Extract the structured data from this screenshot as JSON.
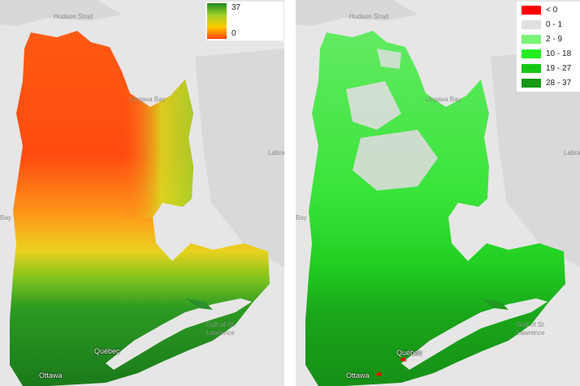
{
  "left_map": {
    "labels": {
      "hudson_strait": "Hudson Strait",
      "ungava_bay": "Ungava Bay",
      "labrador": "Labra",
      "bay": "Bay",
      "gulf_line1": "Gulf of St.",
      "gulf_line2": "Lawrence",
      "quebec": "Québec",
      "ottawa": "Ottawa"
    },
    "legend": {
      "max": "37",
      "min": "0",
      "colors": [
        "#1e8a1e",
        "#9fd12a",
        "#ffcc00",
        "#ff4000"
      ]
    }
  },
  "right_map": {
    "labels": {
      "hudson_strait": "Hudson Strait",
      "ungava_bay": "Ungava Bay",
      "labrador": "Labra",
      "bay": "Bay",
      "gulf_line1": "Gulf of St.",
      "gulf_line2": "Lawrence",
      "quebec": "Québec",
      "ottawa": "Ottawa"
    },
    "legend": [
      {
        "label": "< 0",
        "color": "#ff0000"
      },
      {
        "label": "0 - 1",
        "color": "#e0e0e0"
      },
      {
        "label": "2 - 9",
        "color": "#78f578"
      },
      {
        "label": "10 - 18",
        "color": "#22ee22"
      },
      {
        "label": "19 - 27",
        "color": "#16c816"
      },
      {
        "label": "28 - 37",
        "color": "#159a15"
      }
    ]
  }
}
